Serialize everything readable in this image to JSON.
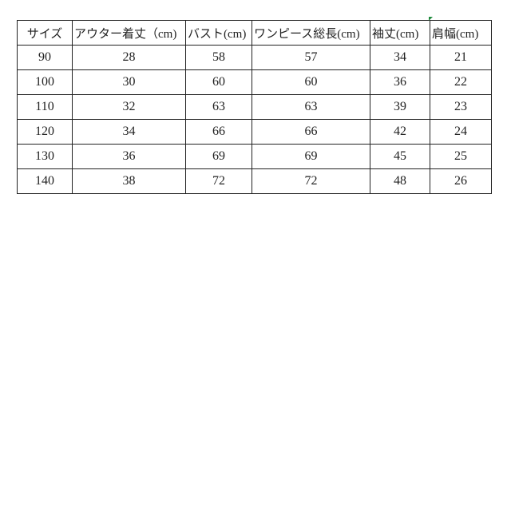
{
  "table": {
    "header": [
      "サイズ",
      "アウター着丈（cm)",
      "バスト(cm)",
      "ワンピース総長(cm)",
      "袖丈(cm)",
      "肩幅(cm)"
    ],
    "rows": [
      [
        90,
        28,
        58,
        57,
        34,
        21
      ],
      [
        100,
        30,
        60,
        60,
        36,
        22
      ],
      [
        110,
        32,
        63,
        63,
        39,
        23
      ],
      [
        120,
        34,
        66,
        66,
        42,
        24
      ],
      [
        130,
        36,
        69,
        69,
        45,
        25
      ],
      [
        140,
        38,
        72,
        72,
        48,
        26
      ]
    ]
  }
}
